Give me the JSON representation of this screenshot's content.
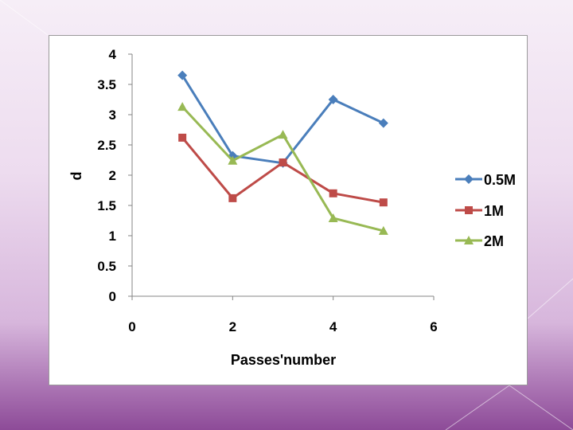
{
  "colors": {
    "series_0_5M": "#4a7ebb",
    "series_1M": "#be4b48",
    "series_2M": "#98b954"
  },
  "chart_data": {
    "type": "line",
    "title": "",
    "xlabel": "Passes'number",
    "ylabel": "d",
    "xlim": [
      0,
      6
    ],
    "ylim": [
      0,
      4
    ],
    "x_ticks": [
      "0",
      "2",
      "4",
      "6"
    ],
    "y_ticks": [
      "0",
      "0.5",
      "1",
      "1.5",
      "2",
      "2.5",
      "3",
      "3.5",
      "4"
    ],
    "grid": false,
    "legend_position": "right",
    "series": [
      {
        "name": "0.5M",
        "marker": "diamond",
        "color": "#4a7ebb",
        "points": [
          {
            "x": 1,
            "y": 3.65
          },
          {
            "x": 2,
            "y": 2.32
          },
          {
            "x": 3,
            "y": 2.2
          },
          {
            "x": 4,
            "y": 3.25
          },
          {
            "x": 5,
            "y": 2.86
          }
        ]
      },
      {
        "name": "1M",
        "marker": "square",
        "color": "#be4b48",
        "points": [
          {
            "x": 1,
            "y": 2.62
          },
          {
            "x": 2,
            "y": 1.62
          },
          {
            "x": 3,
            "y": 2.21
          },
          {
            "x": 4,
            "y": 1.7
          },
          {
            "x": 5,
            "y": 1.55
          }
        ]
      },
      {
        "name": "2M",
        "marker": "triangle",
        "color": "#98b954",
        "points": [
          {
            "x": 1,
            "y": 3.13
          },
          {
            "x": 2,
            "y": 2.24
          },
          {
            "x": 3,
            "y": 2.67
          },
          {
            "x": 4,
            "y": 1.29
          },
          {
            "x": 5,
            "y": 1.08
          }
        ]
      }
    ]
  }
}
